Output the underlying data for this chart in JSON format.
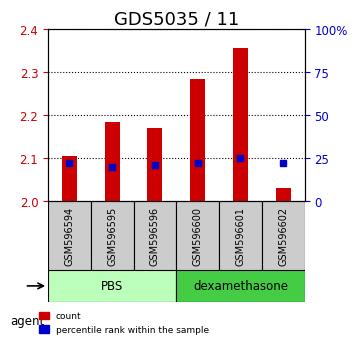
{
  "title": "GDS5035 / 11",
  "samples": [
    "GSM596594",
    "GSM596595",
    "GSM596596",
    "GSM596600",
    "GSM596601",
    "GSM596602"
  ],
  "count_values": [
    2.105,
    2.185,
    2.17,
    2.285,
    2.355,
    2.03
  ],
  "count_base": 2.0,
  "percentile_values": [
    22,
    20,
    21,
    22,
    25,
    22
  ],
  "percentile_base": 0,
  "groups": [
    {
      "label": "PBS",
      "indices": [
        0,
        1,
        2
      ],
      "color": "#aaffaa"
    },
    {
      "label": "dexamethasone",
      "indices": [
        3,
        4,
        5
      ],
      "color": "#44cc44"
    }
  ],
  "ylim_left": [
    2.0,
    2.4
  ],
  "ylim_right": [
    0,
    100
  ],
  "yticks_left": [
    2.0,
    2.1,
    2.2,
    2.3,
    2.4
  ],
  "yticks_right": [
    0,
    25,
    50,
    75,
    100
  ],
  "ytick_labels_right": [
    "0",
    "25",
    "50",
    "75",
    "100%"
  ],
  "left_color": "#cc0000",
  "right_color": "#0000cc",
  "bar_color": "#cc0000",
  "dot_color": "#0000cc",
  "bar_width": 0.35,
  "grid_color": "#000000",
  "background_plot": "#ffffff",
  "background_label": "#cccccc",
  "background_pbs": "#bbffbb",
  "background_dex": "#44cc44",
  "agent_label": "agent",
  "legend_count": "count",
  "legend_pct": "percentile rank within the sample",
  "title_fontsize": 13,
  "axis_fontsize": 9,
  "tick_fontsize": 8.5
}
